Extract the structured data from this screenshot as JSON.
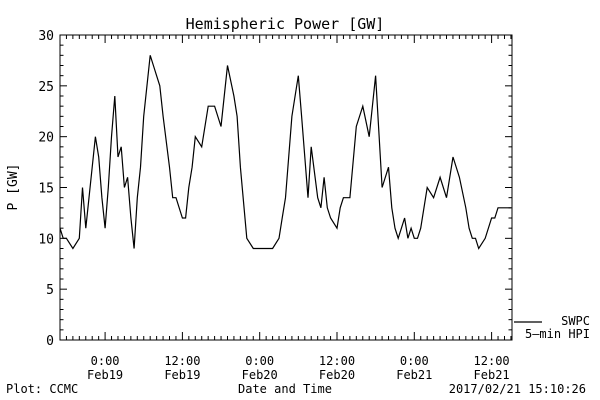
{
  "chart_data": {
    "type": "line",
    "title": "Hemispheric Power [GW]",
    "xlabel": "Date and Time",
    "ylabel": "P [GW]",
    "ylim": [
      0,
      30
    ],
    "y_ticks": [
      0,
      5,
      10,
      15,
      20,
      25,
      30
    ],
    "xlim": [
      "2017-02-18 17:00",
      "2017-02-21 15:10"
    ],
    "x_ticks": [
      {
        "time": "2017-02-19 00:00",
        "label_time": "0:00",
        "label_date": "Feb19"
      },
      {
        "time": "2017-02-19 12:00",
        "label_time": "12:00",
        "label_date": "Feb19"
      },
      {
        "time": "2017-02-20 00:00",
        "label_time": "0:00",
        "label_date": "Feb20"
      },
      {
        "time": "2017-02-20 12:00",
        "label_time": "12:00",
        "label_date": "Feb20"
      },
      {
        "time": "2017-02-21 00:00",
        "label_time": "0:00",
        "label_date": "Feb21"
      },
      {
        "time": "2017-02-21 12:00",
        "label_time": "12:00",
        "label_date": "Feb21"
      }
    ],
    "grid": false,
    "legend_position": "bottom-right",
    "series": [
      {
        "name": "SWPC 5-min HPI",
        "color": "#000000",
        "x": [
          "2017-02-18 17:00",
          "2017-02-18 17:30",
          "2017-02-18 18:00",
          "2017-02-18 19:00",
          "2017-02-18 20:00",
          "2017-02-18 20:30",
          "2017-02-18 21:00",
          "2017-02-18 21:30",
          "2017-02-18 22:00",
          "2017-02-18 22:30",
          "2017-02-18 23:00",
          "2017-02-18 23:30",
          "2017-02-19 00:00",
          "2017-02-19 00:30",
          "2017-02-19 01:00",
          "2017-02-19 01:30",
          "2017-02-19 02:00",
          "2017-02-19 02:30",
          "2017-02-19 03:00",
          "2017-02-19 03:30",
          "2017-02-19 04:00",
          "2017-02-19 04:30",
          "2017-02-19 05:00",
          "2017-02-19 05:30",
          "2017-02-19 06:00",
          "2017-02-19 07:00",
          "2017-02-19 07:30",
          "2017-02-19 08:00",
          "2017-02-19 08:30",
          "2017-02-19 09:00",
          "2017-02-19 10:00",
          "2017-02-19 10:30",
          "2017-02-19 11:00",
          "2017-02-19 12:00",
          "2017-02-19 12:30",
          "2017-02-19 13:00",
          "2017-02-19 13:30",
          "2017-02-19 14:00",
          "2017-02-19 15:00",
          "2017-02-19 16:00",
          "2017-02-19 17:00",
          "2017-02-19 18:00",
          "2017-02-19 19:00",
          "2017-02-19 20:00",
          "2017-02-19 20:30",
          "2017-02-19 21:00",
          "2017-02-19 22:00",
          "2017-02-19 23:00",
          "2017-02-20 00:00",
          "2017-02-20 01:00",
          "2017-02-20 02:00",
          "2017-02-20 03:00",
          "2017-02-20 03:30",
          "2017-02-20 04:00",
          "2017-02-20 05:00",
          "2017-02-20 06:00",
          "2017-02-20 06:30",
          "2017-02-20 07:00",
          "2017-02-20 07:30",
          "2017-02-20 08:00",
          "2017-02-20 09:00",
          "2017-02-20 09:30",
          "2017-02-20 10:00",
          "2017-02-20 10:30",
          "2017-02-20 11:00",
          "2017-02-20 12:00",
          "2017-02-20 12:30",
          "2017-02-20 13:00",
          "2017-02-20 14:00",
          "2017-02-20 15:00",
          "2017-02-20 16:00",
          "2017-02-20 17:00",
          "2017-02-20 18:00",
          "2017-02-20 19:00",
          "2017-02-20 20:00",
          "2017-02-20 20:30",
          "2017-02-20 21:00",
          "2017-02-20 21:30",
          "2017-02-20 22:00",
          "2017-02-20 22:30",
          "2017-02-20 23:00",
          "2017-02-20 23:30",
          "2017-02-21 00:00",
          "2017-02-21 00:30",
          "2017-02-21 01:00",
          "2017-02-21 02:00",
          "2017-02-21 03:00",
          "2017-02-21 04:00",
          "2017-02-21 05:00",
          "2017-02-21 06:00",
          "2017-02-21 07:00",
          "2017-02-21 08:00",
          "2017-02-21 08:30",
          "2017-02-21 09:00",
          "2017-02-21 09:30",
          "2017-02-21 10:00",
          "2017-02-21 11:00",
          "2017-02-21 12:00",
          "2017-02-21 12:30",
          "2017-02-21 13:00",
          "2017-02-21 14:00",
          "2017-02-21 15:00"
        ],
        "values": [
          11,
          10,
          10,
          9,
          10,
          15,
          11,
          14,
          17,
          20,
          18,
          14,
          11,
          15,
          20,
          24,
          18,
          19,
          15,
          16,
          12,
          9,
          14,
          17,
          22,
          28,
          27,
          26,
          25,
          22,
          17,
          14,
          14,
          12,
          12,
          15,
          17,
          20,
          19,
          23,
          23,
          21,
          27,
          24,
          22,
          17,
          10,
          9,
          9,
          9,
          9,
          10,
          12,
          14,
          22,
          26,
          22,
          18,
          14,
          19,
          14,
          13,
          16,
          13,
          12,
          11,
          13,
          14,
          14,
          21,
          23,
          20,
          26,
          15,
          17,
          13,
          11,
          10,
          11,
          12,
          10,
          11,
          10,
          10,
          11,
          15,
          14,
          16,
          14,
          18,
          16,
          13,
          11,
          10,
          10,
          9,
          10,
          12,
          12,
          13,
          13,
          13
        ]
      }
    ]
  },
  "legend": {
    "line1": "SWPC",
    "line2": "5–min HPI"
  },
  "footer": {
    "left": "Plot: CCMC",
    "center": "Date and Time",
    "right": "2017/02/21 15:10:26"
  }
}
